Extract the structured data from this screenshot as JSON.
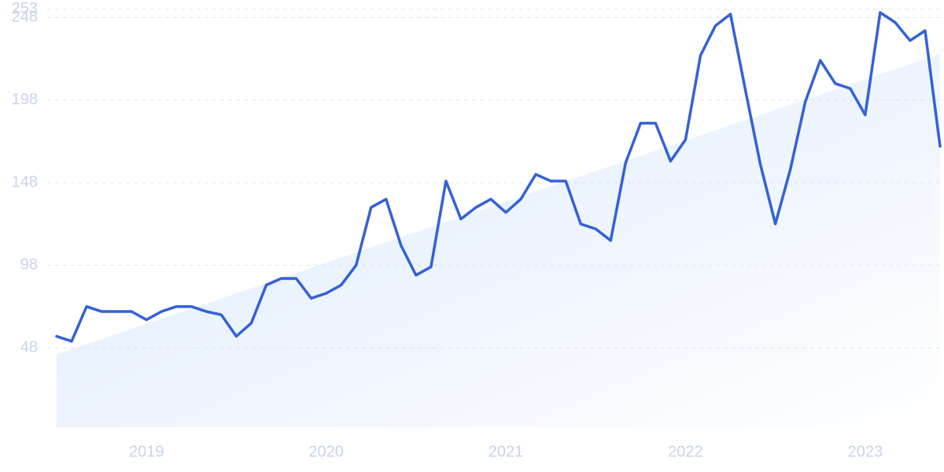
{
  "chart_data": {
    "type": "line",
    "categories": [
      null,
      null,
      null,
      null,
      null,
      null,
      "2019",
      null,
      null,
      null,
      null,
      null,
      null,
      null,
      null,
      null,
      null,
      null,
      "2020",
      null,
      null,
      null,
      null,
      null,
      null,
      null,
      null,
      null,
      null,
      null,
      "2021",
      null,
      null,
      null,
      null,
      null,
      null,
      null,
      null,
      null,
      null,
      null,
      "2022",
      null,
      null,
      null,
      null,
      null,
      null,
      null,
      null,
      null,
      null,
      null,
      "2023",
      null,
      null,
      null,
      null,
      null
    ],
    "series": [
      {
        "color": "#3361d8",
        "values": [
          55,
          52,
          73,
          70,
          70,
          70,
          65,
          70,
          73,
          73,
          70,
          68,
          55,
          63,
          86,
          90,
          90,
          78,
          81,
          86,
          98,
          133,
          138,
          110,
          92,
          97,
          149,
          126,
          133,
          138,
          130,
          138,
          153,
          149,
          149,
          123,
          120,
          113,
          160,
          184,
          184,
          161,
          174,
          225,
          243,
          250,
          204,
          159,
          123,
          156,
          197,
          222,
          208,
          205,
          189,
          251,
          245,
          234,
          240,
          170
        ]
      }
    ],
    "trend": {
      "color": "#dbe9fb",
      "values": [
        44,
        226
      ]
    },
    "ylim": [
      0,
      253
    ],
    "yticks": [
      48,
      98,
      148,
      198,
      248,
      253
    ],
    "grid": true
  }
}
